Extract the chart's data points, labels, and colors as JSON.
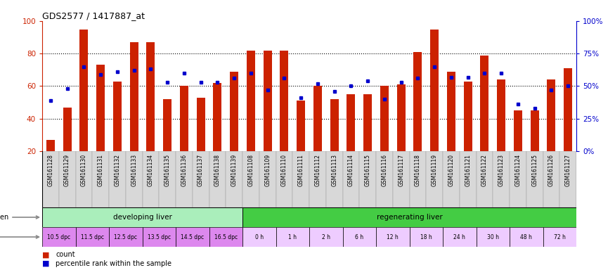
{
  "title": "GDS2577 / 1417887_at",
  "samples": [
    "GSM161128",
    "GSM161129",
    "GSM161130",
    "GSM161131",
    "GSM161132",
    "GSM161133",
    "GSM161134",
    "GSM161135",
    "GSM161136",
    "GSM161137",
    "GSM161138",
    "GSM161139",
    "GSM161108",
    "GSM161109",
    "GSM161110",
    "GSM161111",
    "GSM161112",
    "GSM161113",
    "GSM161114",
    "GSM161115",
    "GSM161116",
    "GSM161117",
    "GSM161118",
    "GSM161119",
    "GSM161120",
    "GSM161121",
    "GSM161122",
    "GSM161123",
    "GSM161124",
    "GSM161125",
    "GSM161126",
    "GSM161127"
  ],
  "count_values": [
    27,
    47,
    95,
    73,
    63,
    87,
    87,
    52,
    60,
    53,
    62,
    69,
    82,
    82,
    82,
    51,
    60,
    52,
    55,
    55,
    60,
    61,
    81,
    95,
    69,
    63,
    79,
    64,
    45,
    45,
    64,
    71
  ],
  "percentile_values": [
    39,
    48,
    65,
    59,
    61,
    62,
    63,
    53,
    60,
    53,
    53,
    56,
    60,
    47,
    56,
    41,
    52,
    46,
    50,
    54,
    40,
    53,
    56,
    65,
    57,
    57,
    60,
    60,
    36,
    33,
    47,
    50
  ],
  "bar_color": "#cc2200",
  "marker_color": "#0000cc",
  "ylim": [
    20,
    100
  ],
  "yticks": [
    20,
    40,
    60,
    80,
    100
  ],
  "right_yticks": [
    0,
    25,
    50,
    75,
    100
  ],
  "right_yticklabels": [
    "0%",
    "25%",
    "50%",
    "75%",
    "100%"
  ],
  "background_color": "#ffffff",
  "label_bg_color": "#d8d8d8",
  "developing_color": "#aaeebb",
  "regenerating_color": "#44cc44",
  "time_dev_color": "#dd88ee",
  "time_reg_color": "#eeccff",
  "time_developing": [
    "10.5 dpc",
    "11.5 dpc",
    "12.5 dpc",
    "13.5 dpc",
    "14.5 dpc",
    "16.5 dpc"
  ],
  "time_regenerating": [
    "0 h",
    "1 h",
    "2 h",
    "6 h",
    "12 h",
    "18 h",
    "24 h",
    "30 h",
    "48 h",
    "72 h"
  ]
}
